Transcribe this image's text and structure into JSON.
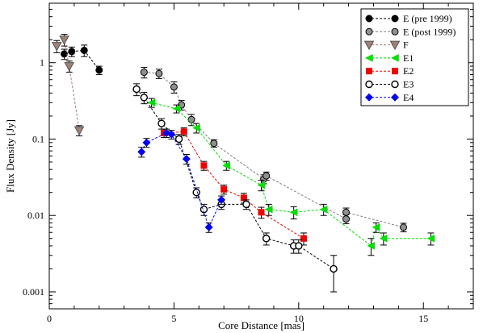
{
  "chart_data": {
    "type": "scatter",
    "xlabel": "Core Distance [mas]",
    "ylabel": "Flux Density [Jy]",
    "xlim": [
      0,
      17
    ],
    "ylim": [
      0.0006,
      6
    ],
    "yscale": "log",
    "x_ticks": [
      0,
      5,
      10,
      15
    ],
    "x_tick_labels": [
      "0",
      "5",
      "10",
      "15"
    ],
    "y_ticks": [
      0.001,
      0.01,
      0.1,
      1
    ],
    "y_tick_labels": [
      "0.001",
      "0.01",
      "0.1",
      "1"
    ],
    "grid": false,
    "legend_position": "top-right",
    "series": [
      {
        "name": "E (pre 1999)",
        "color": "#000000",
        "marker": "circle-filled",
        "line": "dashed",
        "points": [
          {
            "x": 0.6,
            "y": 1.3,
            "err": 0.2
          },
          {
            "x": 0.9,
            "y": 1.4,
            "err": 0.2
          },
          {
            "x": 1.4,
            "y": 1.45,
            "err": 0.25
          },
          {
            "x": 2.0,
            "y": 0.8,
            "err": 0.1
          }
        ]
      },
      {
        "name": "E (post 1999)",
        "color": "#808080",
        "marker": "circle-gray",
        "line": "dashed",
        "points": [
          {
            "x": 3.8,
            "y": 0.75,
            "err": 0.12
          },
          {
            "x": 4.4,
            "y": 0.72,
            "err": 0.1
          },
          {
            "x": 5.0,
            "y": 0.48,
            "err": 0.08
          },
          {
            "x": 5.3,
            "y": 0.28,
            "err": 0.04
          },
          {
            "x": 5.7,
            "y": 0.18,
            "err": 0.03
          },
          {
            "x": 6.6,
            "y": 0.088,
            "err": 0.01
          },
          {
            "x": 8.6,
            "y": 0.03,
            "err": 0.004
          },
          {
            "x": 8.7,
            "y": 0.033,
            "err": 0.004
          },
          {
            "x": 11.9,
            "y": 0.009,
            "err": 0.0012
          },
          {
            "x": 11.9,
            "y": 0.011,
            "err": 0.0015
          },
          {
            "x": 14.2,
            "y": 0.007,
            "err": 0.0009
          }
        ]
      },
      {
        "name": "F",
        "color": "#a08078",
        "marker": "triangle-down",
        "line": "dashed",
        "points": [
          {
            "x": 0.3,
            "y": 1.65,
            "err": 0.3
          },
          {
            "x": 0.6,
            "y": 2.0,
            "err": 0.35
          },
          {
            "x": 0.8,
            "y": 0.9,
            "err": 0.15
          },
          {
            "x": 1.2,
            "y": 0.13,
            "err": 0.02
          }
        ]
      },
      {
        "name": "E1",
        "color": "#00dd00",
        "marker": "triangle-left",
        "line": "dashed",
        "points": [
          {
            "x": 4.1,
            "y": 0.3,
            "err": 0.04
          },
          {
            "x": 5.1,
            "y": 0.25,
            "err": 0.03
          },
          {
            "x": 5.9,
            "y": 0.14,
            "err": 0.02
          },
          {
            "x": 7.1,
            "y": 0.045,
            "err": 0.006
          },
          {
            "x": 8.5,
            "y": 0.025,
            "err": 0.004
          },
          {
            "x": 8.8,
            "y": 0.012,
            "err": 0.002
          },
          {
            "x": 9.8,
            "y": 0.011,
            "err": 0.002
          },
          {
            "x": 11.0,
            "y": 0.012,
            "err": 0.002
          },
          {
            "x": 12.9,
            "y": 0.004,
            "err": 0.001
          },
          {
            "x": 13.1,
            "y": 0.007,
            "err": 0.001
          },
          {
            "x": 13.4,
            "y": 0.005,
            "err": 0.0009
          },
          {
            "x": 15.3,
            "y": 0.005,
            "err": 0.0009
          }
        ]
      },
      {
        "name": "E2",
        "color": "#ee0000",
        "marker": "square",
        "line": "dashed",
        "points": [
          {
            "x": 4.6,
            "y": 0.12,
            "err": 0.015
          },
          {
            "x": 5.4,
            "y": 0.125,
            "err": 0.015
          },
          {
            "x": 6.2,
            "y": 0.045,
            "err": 0.006
          },
          {
            "x": 7.0,
            "y": 0.022,
            "err": 0.003
          },
          {
            "x": 7.8,
            "y": 0.017,
            "err": 0.0025
          },
          {
            "x": 8.5,
            "y": 0.011,
            "err": 0.0018
          },
          {
            "x": 10.2,
            "y": 0.005,
            "err": 0.0009
          }
        ]
      },
      {
        "name": "E3",
        "color": "#000000",
        "marker": "circle-open",
        "line": "dashed",
        "points": [
          {
            "x": 3.5,
            "y": 0.45,
            "err": 0.08
          },
          {
            "x": 3.8,
            "y": 0.35,
            "err": 0.06
          },
          {
            "x": 4.5,
            "y": 0.16,
            "err": 0.025
          },
          {
            "x": 5.2,
            "y": 0.1,
            "err": 0.015
          },
          {
            "x": 5.9,
            "y": 0.02,
            "err": 0.003
          },
          {
            "x": 6.2,
            "y": 0.012,
            "err": 0.002
          },
          {
            "x": 6.9,
            "y": 0.014,
            "err": 0.002
          },
          {
            "x": 7.9,
            "y": 0.014,
            "err": 0.002
          },
          {
            "x": 8.7,
            "y": 0.005,
            "err": 0.0009
          },
          {
            "x": 9.8,
            "y": 0.004,
            "err": 0.0008
          },
          {
            "x": 10.0,
            "y": 0.004,
            "err": 0.0008
          },
          {
            "x": 11.4,
            "y": 0.002,
            "err": 0.001
          }
        ]
      },
      {
        "name": "E4",
        "color": "#0000ee",
        "marker": "diamond",
        "line": "dashed",
        "points": [
          {
            "x": 3.7,
            "y": 0.068,
            "err": 0.01
          },
          {
            "x": 3.9,
            "y": 0.09,
            "err": 0.012
          },
          {
            "x": 4.7,
            "y": 0.12,
            "err": 0.015
          },
          {
            "x": 4.9,
            "y": 0.115,
            "err": 0.015
          },
          {
            "x": 5.5,
            "y": 0.055,
            "err": 0.008
          },
          {
            "x": 6.4,
            "y": 0.007,
            "err": 0.001
          },
          {
            "x": 6.9,
            "y": 0.016,
            "err": 0.002
          }
        ]
      }
    ]
  }
}
